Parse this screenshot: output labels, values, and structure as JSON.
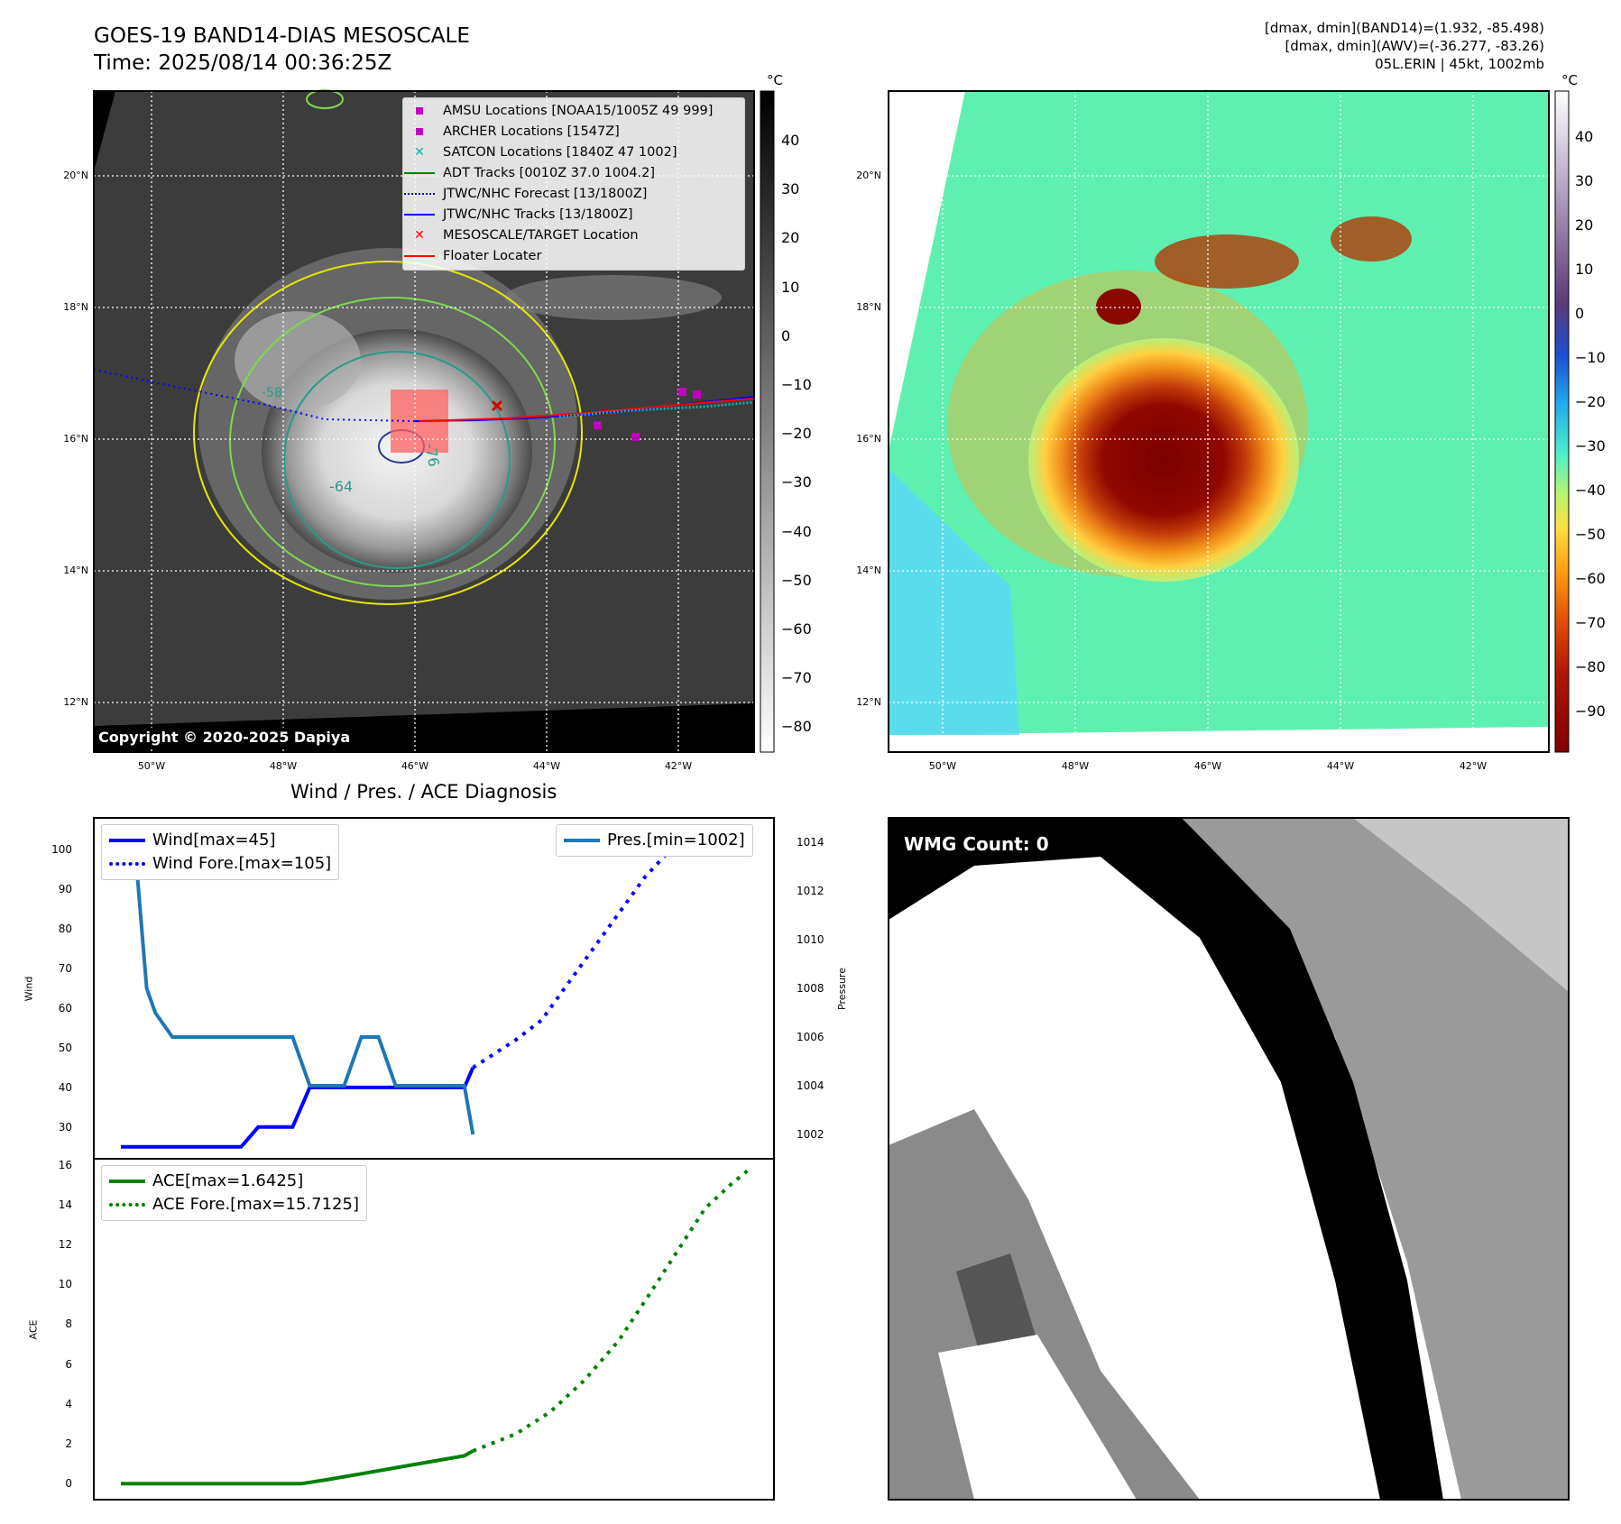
{
  "header": {
    "title": "GOES-19 BAND14-DIAS MESOSCALE",
    "time": "Time: 2025/08/14 00:36:25Z",
    "dmax_band14": "[dmax, dmin](BAND14)=(1.932, -85.498)",
    "dmax_awv": "[dmax, dmin](AWV)=(-36.277, -83.26)",
    "storm": "05L.ERIN | 45kt, 1002mb"
  },
  "ir_panel": {
    "unit": "°C",
    "colorbar_ticks": [
      "40",
      "30",
      "20",
      "10",
      "0",
      "−10",
      "−20",
      "−30",
      "−40",
      "−50",
      "−60",
      "−70",
      "−80"
    ],
    "lat_labels": [
      "20°N",
      "18°N",
      "16°N",
      "14°N",
      "12°N"
    ],
    "lon_labels": [
      "50°W",
      "48°W",
      "46°W",
      "44°W",
      "42°W"
    ],
    "contour_labels": [
      "-64",
      "-76",
      "-58"
    ],
    "copyright": "Copyright © 2020-2025 Dapiya",
    "legend": [
      {
        "label": "AMSU Locations [NOAA15/1005Z 49 999]",
        "color": "#c000c0",
        "marker": "square"
      },
      {
        "label": "ARCHER Locations [1547Z]",
        "color": "#c000c0",
        "marker": "square"
      },
      {
        "label": "SATCON Locations [1840Z 47 1002]",
        "color": "#10b0b0",
        "marker": "x"
      },
      {
        "label": "ADT Tracks [0010Z 37.0 1004.2]",
        "color": "#008000",
        "marker": "line"
      },
      {
        "label": "JTWC/NHC Forecast [13/1800Z]",
        "color": "#0000ff",
        "marker": "dotted"
      },
      {
        "label": "JTWC/NHC Tracks [13/1800Z]",
        "color": "#0000ff",
        "marker": "dotline"
      },
      {
        "label": "MESOSCALE/TARGET Location",
        "color": "#ff0000",
        "marker": "x"
      },
      {
        "label": "Floater Locater",
        "color": "#ff0000",
        "marker": "line"
      }
    ]
  },
  "color_panel": {
    "unit": "°C",
    "colorbar_ticks": [
      "40",
      "30",
      "20",
      "10",
      "0",
      "−10",
      "−20",
      "−30",
      "−40",
      "−50",
      "−60",
      "−70",
      "−80",
      "−90"
    ],
    "lat_labels": [
      "20°N",
      "18°N",
      "16°N",
      "14°N",
      "12°N"
    ],
    "lon_labels": [
      "50°W",
      "48°W",
      "46°W",
      "44°W",
      "42°W"
    ]
  },
  "diag_title": "Wind / Pres. / ACE Diagnosis",
  "wmg_label": "WMG Count: 0",
  "chart_data": [
    {
      "type": "line",
      "ylabel": "Wind",
      "y2label": "Pressure",
      "ylim": [
        22,
        108
      ],
      "y2lim": [
        1001.0,
        1015.0
      ],
      "yticks": [
        30,
        40,
        50,
        60,
        70,
        80,
        90,
        100
      ],
      "y2ticks": [
        1002,
        1004,
        1006,
        1008,
        1010,
        1012,
        1014
      ],
      "legend_left": [
        "Wind[max=45]",
        "Wind Fore.[max=105]"
      ],
      "legend_right": [
        "Pres.[min=1002]"
      ],
      "series": [
        {
          "name": "Wind[max=45]",
          "color": "#0000ff",
          "style": "solid",
          "x": [
            0,
            1,
            2,
            3,
            4,
            5,
            5.5,
            6,
            7,
            8,
            9,
            10,
            11,
            12,
            12.5,
            13,
            14,
            15,
            16,
            17,
            18,
            19,
            20,
            20.5
          ],
          "values": [
            25,
            25,
            25,
            25,
            25,
            25,
            25,
            25,
            25,
            30,
            30,
            30,
            40,
            40,
            40,
            40,
            40,
            40,
            40,
            40,
            40,
            40,
            40,
            45
          ]
        },
        {
          "name": "Wind Fore.[max=105]",
          "color": "#0000ff",
          "style": "dotted",
          "x": [
            20.5,
            23,
            24.5,
            26,
            27.5,
            29,
            30.5,
            32,
            33,
            34,
            36
          ],
          "values": [
            45,
            52,
            57,
            66,
            75,
            84,
            93,
            100,
            100,
            105,
            105
          ]
        },
        {
          "name": "Pres.[min=1002]",
          "color": "#1f77b4",
          "style": "solid",
          "axis": "right",
          "x": [
            0,
            0.8,
            1.5,
            2,
            3,
            4,
            4.5,
            5,
            6,
            7,
            8,
            9,
            10,
            11,
            12,
            13,
            14,
            15,
            16,
            17,
            18,
            19,
            20,
            20.5
          ],
          "values": [
            1014,
            1014,
            1008,
            1007,
            1006,
            1006,
            1006,
            1006,
            1006,
            1006,
            1006,
            1006,
            1006,
            1004,
            1004,
            1004,
            1006,
            1006,
            1004,
            1004,
            1004,
            1004,
            1004,
            1002
          ]
        }
      ]
    },
    {
      "type": "line",
      "ylabel": "ACE",
      "ylim": [
        -0.8,
        16.3
      ],
      "yticks": [
        0,
        2,
        4,
        6,
        8,
        10,
        12,
        14,
        16
      ],
      "legend": [
        "ACE[max=1.6425]",
        "ACE Fore.[max=15.7125]"
      ],
      "series": [
        {
          "name": "ACE[max=1.6425]",
          "color": "#008000",
          "style": "solid",
          "x": [
            0,
            3,
            6,
            9,
            10.5,
            12,
            14,
            16,
            18,
            20,
            20.5
          ],
          "values": [
            0,
            0,
            0,
            0,
            0,
            0.2,
            0.5,
            0.8,
            1.1,
            1.4,
            1.6425
          ]
        },
        {
          "name": "ACE Fore.[max=15.7125]",
          "color": "#008000",
          "style": "dotted",
          "x": [
            20.5,
            23,
            25,
            27,
            29,
            31,
            32.5,
            34,
            35.5,
            36.5
          ],
          "values": [
            1.6425,
            2.5,
            3.6,
            5.2,
            7.2,
            9.8,
            11.8,
            13.8,
            15.0,
            15.7125
          ]
        }
      ]
    }
  ]
}
